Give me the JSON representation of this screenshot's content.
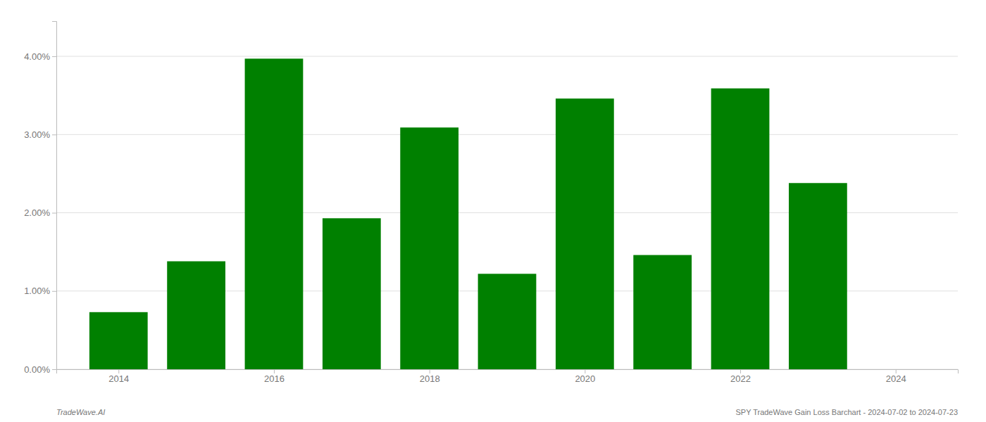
{
  "chart_data": {
    "type": "bar",
    "x": [
      2014,
      2015,
      2016,
      2017,
      2018,
      2019,
      2020,
      2021,
      2022,
      2023
    ],
    "values": [
      0.0073,
      0.0138,
      0.0397,
      0.0193,
      0.0309,
      0.0122,
      0.0346,
      0.0146,
      0.0359,
      0.0238
    ],
    "color": "#008000",
    "xlim": [
      2013.2,
      2024.8
    ],
    "xticks": [
      2014,
      2016,
      2018,
      2020,
      2022,
      2024
    ],
    "ylim": [
      0,
      0.0445
    ],
    "yticks": [
      {
        "value": 0.0,
        "label": "0.00%"
      },
      {
        "value": 0.01,
        "label": "1.00%"
      },
      {
        "value": 0.02,
        "label": "2.00%"
      },
      {
        "value": 0.03,
        "label": "3.00%"
      },
      {
        "value": 0.04,
        "label": "4.00%"
      }
    ],
    "grid": true,
    "annotations": [
      "TradeWave.AI",
      "SPY TradeWave Gain Loss Barchart - 2024-07-02 to 2024-07-23"
    ]
  }
}
